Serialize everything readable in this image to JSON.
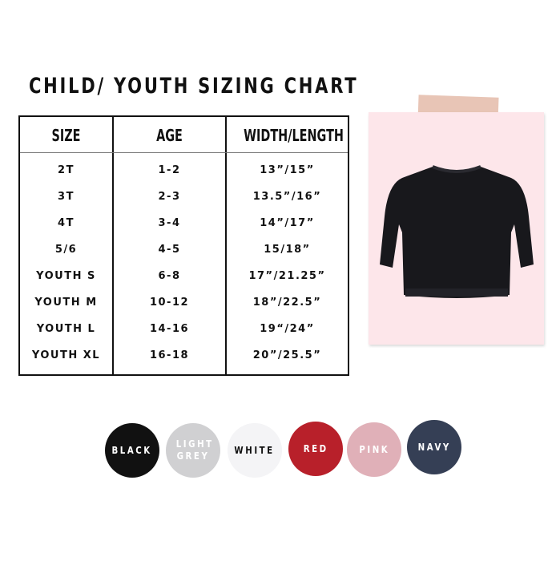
{
  "title": "CHILD/ YOUTH SIZING CHART",
  "table": {
    "headers": [
      "SIZE",
      "AGE",
      "WIDTH/LENGTH"
    ],
    "rows": [
      [
        "2T",
        "1-2",
        "13”/15”"
      ],
      [
        "3T",
        "2-3",
        "13.5”/16”"
      ],
      [
        "4T",
        "3-4",
        "14”/17”"
      ],
      [
        "5/6",
        "4-5",
        "15/18”"
      ],
      [
        "YOUTH S",
        "6-8",
        "17”/21.25”"
      ],
      [
        "YOUTH M",
        "10-12",
        "18”/22.5”"
      ],
      [
        "YOUTH L",
        "14-16",
        "19“/24”"
      ],
      [
        "YOUTH XL",
        "16-18",
        "20”/25.5”"
      ]
    ]
  },
  "colors": [
    {
      "label": "BLACK",
      "fill": "#111111",
      "text": "#ffffff"
    },
    {
      "label": "LIGHT GREY",
      "fill": "#d0d0d2",
      "text": "#ffffff"
    },
    {
      "label": "WHITE",
      "fill": "#f4f4f6",
      "text": "#111111"
    },
    {
      "label": "RED",
      "fill": "#b8202a",
      "text": "#ffffff"
    },
    {
      "label": "PINK",
      "fill": "#e0b0b8",
      "text": "#ffffff"
    },
    {
      "label": "NAVY",
      "fill": "#353f55",
      "text": "#ffffff"
    }
  ]
}
